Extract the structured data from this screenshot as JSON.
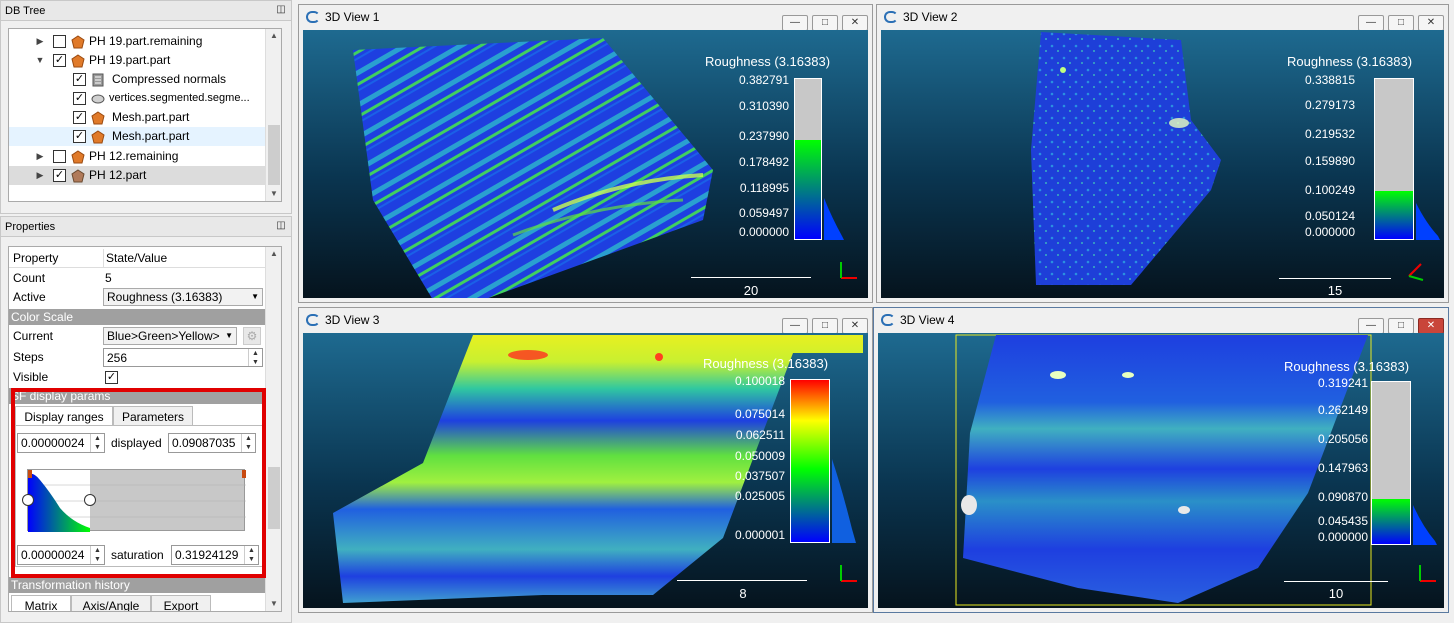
{
  "db_tree": {
    "title": "DB Tree",
    "items": [
      {
        "label": "PH 19.part.remaining",
        "checked": false
      },
      {
        "label": "PH 19.part.part",
        "checked": true
      },
      {
        "label": "Compressed normals",
        "checked": true
      },
      {
        "label": "vertices.segmented.segme...",
        "checked": true
      },
      {
        "label": "Mesh.part.part",
        "checked": true
      },
      {
        "label": "Mesh.part.part",
        "checked": true
      },
      {
        "label": "PH 12.remaining",
        "checked": false
      },
      {
        "label": "PH 12.part",
        "checked": true
      }
    ]
  },
  "properties": {
    "title": "Properties",
    "col_property": "Property",
    "col_value": "State/Value",
    "count_label": "Count",
    "count_value": "5",
    "active_label": "Active",
    "active_value": "Roughness (3.16383)",
    "color_scale_section": "Color Scale",
    "current_label": "Current",
    "current_value": "Blue>Green>Yellow>",
    "steps_label": "Steps",
    "steps_value": "256",
    "visible_label": "Visible",
    "visible_checked": true,
    "sf_section": "SF display params",
    "tab_display_ranges": "Display ranges",
    "tab_parameters": "Parameters",
    "displayed_min": "0.00000024",
    "displayed_label": "displayed",
    "displayed_max": "0.09087035",
    "saturation_min": "0.00000024",
    "saturation_label": "saturation",
    "saturation_max": "0.31924129",
    "transform_section": "Transformation history",
    "tab_matrix": "Matrix",
    "tab_axis_angle": "Axis/Angle",
    "tab_export": "Export"
  },
  "views": [
    {
      "title": "3D View 1",
      "sf_title": "Roughness (3.16383)",
      "ticks": [
        "0.382791",
        "0.310390",
        "0.237990",
        "0.178492",
        "0.118995",
        "0.059497",
        "0.000000"
      ],
      "fill_fraction": 0.62,
      "scale_label": "20",
      "scale_type": "saturation"
    },
    {
      "title": "3D View 2",
      "sf_title": "Roughness (3.16383)",
      "ticks": [
        "0.338815",
        "0.279173",
        "0.219532",
        "0.159890",
        "0.100249",
        "0.050124",
        "0.000000"
      ],
      "fill_fraction": 0.3,
      "scale_label": "15",
      "scale_type": "saturation"
    },
    {
      "title": "3D View 3",
      "sf_title": "Roughness (3.16383)",
      "ticks": [
        "0.100018",
        "0.075014",
        "0.062511",
        "0.050009",
        "0.037507",
        "0.025005",
        "0.000001"
      ],
      "fill_fraction": 1.0,
      "scale_label": "8",
      "scale_type": "full"
    },
    {
      "title": "3D View 4",
      "sf_title": "Roughness (3.16383)",
      "ticks": [
        "0.319241",
        "0.262149",
        "0.205056",
        "0.147963",
        "0.090870",
        "0.045435",
        "0.000000"
      ],
      "fill_fraction": 0.28,
      "scale_label": "10",
      "scale_type": "saturation"
    }
  ],
  "icons": {
    "float": "float-icon",
    "minimize": "minimize-icon",
    "maximize": "maximize-icon",
    "close": "close-icon"
  },
  "colors": {
    "highlight_box": "#e00000",
    "section_header": "#a0a0a0",
    "scale_blue": "#0000ff",
    "scale_green": "#00ff00",
    "scale_yellow": "#ffff00",
    "scale_red": "#ff0000"
  }
}
